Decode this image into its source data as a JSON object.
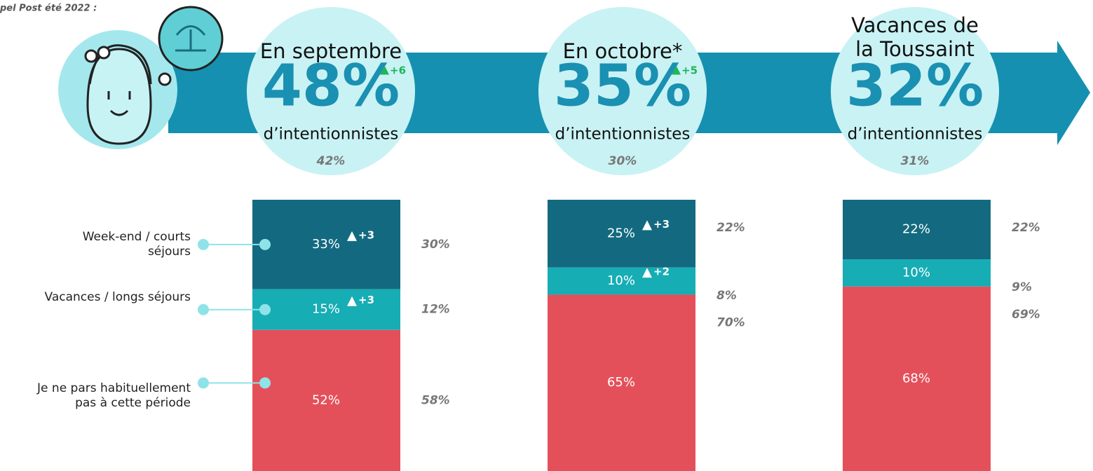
{
  "chart_data": {
    "type": "stacked-bar",
    "note": "pel Post été 2022 :",
    "categories": [
      "En septembre",
      "En octobre*",
      "Vacances de la Toussaint"
    ],
    "intent": {
      "label": "d’intentionnistes",
      "value_labels": [
        "48%",
        "35%",
        "32%"
      ],
      "delta_labels": [
        "+6",
        "+5",
        null
      ],
      "previous_labels": [
        "42%",
        "30%",
        "31%"
      ]
    },
    "series": [
      {
        "name": "Week-end / courts séjours",
        "color": "#136a80",
        "values": [
          33,
          25,
          22
        ],
        "value_labels": [
          "33%",
          "25%",
          "22%"
        ],
        "delta_labels": [
          "+3",
          "+3",
          null
        ],
        "previous_labels": [
          "30%",
          "22%",
          "22%"
        ]
      },
      {
        "name": "Vacances / longs séjours",
        "color": "#16adb5",
        "values": [
          15,
          10,
          10
        ],
        "value_labels": [
          "15%",
          "10%",
          "10%"
        ],
        "delta_labels": [
          "+3",
          "+2",
          null
        ],
        "previous_labels": [
          "12%",
          "8%",
          "9%"
        ]
      },
      {
        "name": "Je ne pars habituellement pas à cette période",
        "color": "#e4505a",
        "values": [
          52,
          65,
          68
        ],
        "value_labels": [
          "52%",
          "65%",
          "68%"
        ],
        "delta_labels": [
          null,
          null,
          null
        ],
        "previous_labels": [
          "58%",
          "70%",
          "69%"
        ]
      }
    ],
    "ylim": [
      0,
      100
    ]
  }
}
